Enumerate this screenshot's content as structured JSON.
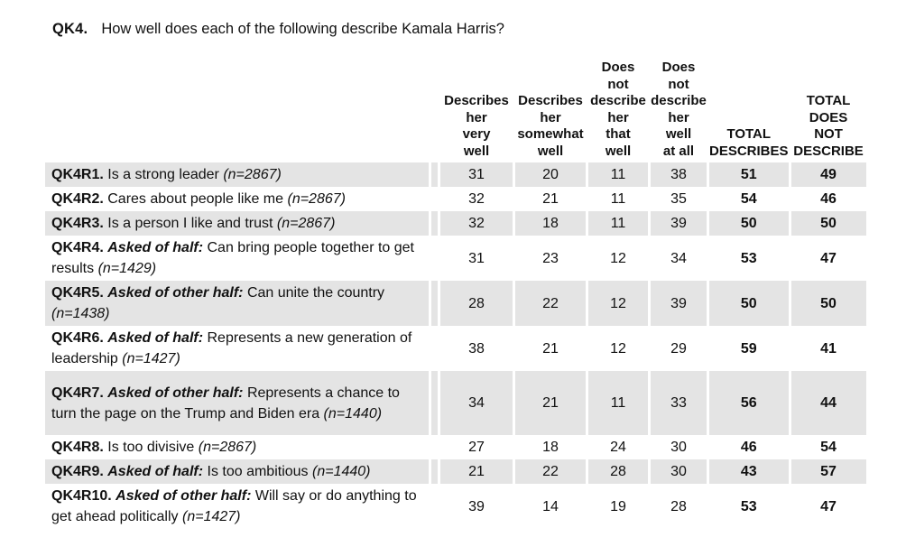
{
  "title": {
    "code": "QK4.",
    "text": "How well does each of the following describe Kamala Harris?"
  },
  "colors": {
    "row_shade": "#e4e4e4",
    "text": "#111111"
  },
  "table": {
    "columns": [
      "Describes\nher\nvery\nwell",
      "Describes\nher\nsomewhat\nwell",
      "Does\nnot\ndescribe\nher\nthat\nwell",
      "Does\nnot\ndescribe\nher\nwell\nat all",
      "TOTAL\nDESCRIBES",
      "TOTAL\nDOES\nNOT\nDESCRIBE"
    ],
    "rows": [
      {
        "code": "QK4R1.",
        "qualifier": "",
        "text": "Is a strong leader",
        "n": "(n=2867)",
        "values": [
          "31",
          "20",
          "11",
          "38",
          "51",
          "49"
        ],
        "shaded": true
      },
      {
        "code": "QK4R2.",
        "qualifier": "",
        "text": "Cares about people like me",
        "n": "(n=2867)",
        "values": [
          "32",
          "21",
          "11",
          "35",
          "54",
          "46"
        ],
        "shaded": false
      },
      {
        "code": "QK4R3.",
        "qualifier": "",
        "text": "Is a person I like and trust",
        "n": "(n=2867)",
        "values": [
          "32",
          "18",
          "11",
          "39",
          "50",
          "50"
        ],
        "shaded": true
      },
      {
        "code": "QK4R4.",
        "qualifier": "Asked of half:",
        "text": "Can bring people together to get results",
        "n": "(n=1429)",
        "values": [
          "31",
          "23",
          "12",
          "34",
          "53",
          "47"
        ],
        "shaded": false
      },
      {
        "code": "QK4R5.",
        "qualifier": "Asked of other half:",
        "text": "Can unite the country",
        "n": "(n=1438)",
        "values": [
          "28",
          "22",
          "12",
          "39",
          "50",
          "50"
        ],
        "shaded": true
      },
      {
        "code": "QK4R6.",
        "qualifier": "Asked of half:",
        "text": "Represents a new generation of leadership",
        "n": "(n=1427)",
        "values": [
          "38",
          "21",
          "12",
          "29",
          "59",
          "41"
        ],
        "shaded": false
      },
      {
        "code": "QK4R7.",
        "qualifier": "Asked of other half:",
        "text": "Represents a chance to turn the page on the Trump and Biden era",
        "n": "(n=1440)",
        "values": [
          "34",
          "21",
          "11",
          "33",
          "56",
          "44"
        ],
        "shaded": true
      },
      {
        "code": "QK4R8.",
        "qualifier": "",
        "text": "Is too divisive",
        "n": "(n=2867)",
        "values": [
          "27",
          "18",
          "24",
          "30",
          "46",
          "54"
        ],
        "shaded": false
      },
      {
        "code": "QK4R9.",
        "qualifier": "Asked of half:",
        "text": "Is too ambitious",
        "n": "(n=1440)",
        "values": [
          "21",
          "22",
          "28",
          "30",
          "43",
          "57"
        ],
        "shaded": true
      },
      {
        "code": "QK4R10.",
        "qualifier": "Asked of other half:",
        "text": "Will say or do anything to get ahead politically",
        "n": "(n=1427)",
        "values": [
          "39",
          "14",
          "19",
          "28",
          "53",
          "47"
        ],
        "shaded": false
      }
    ]
  }
}
